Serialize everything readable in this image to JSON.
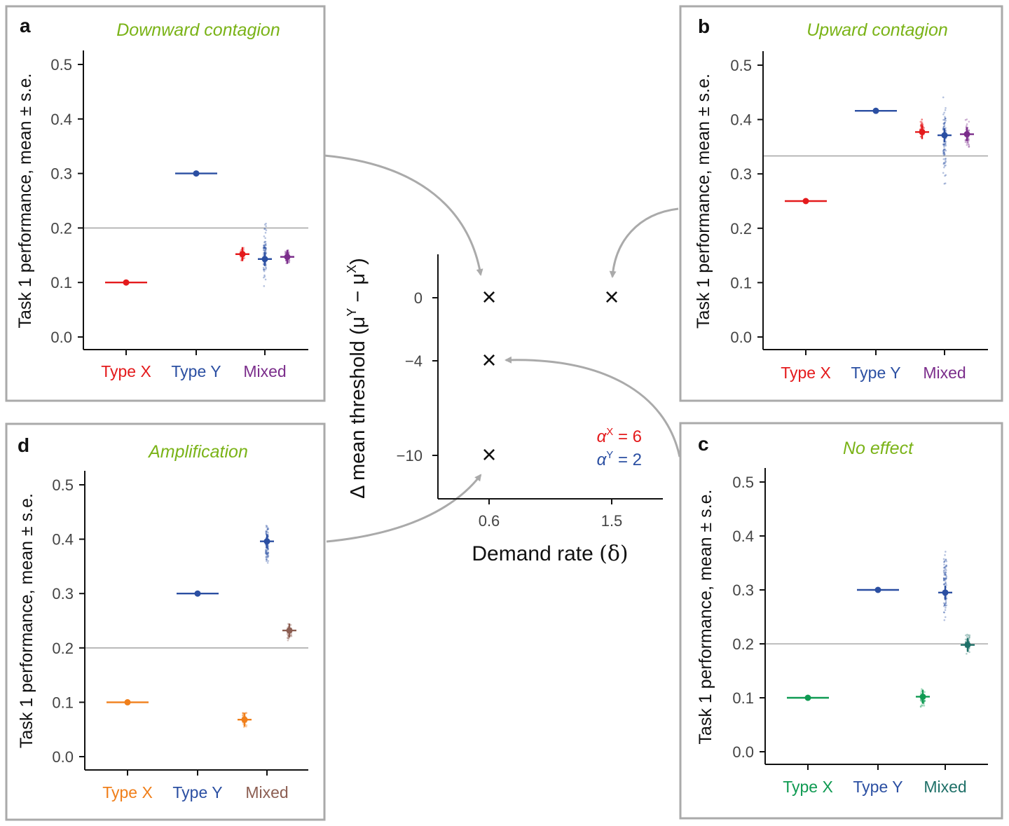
{
  "colors": {
    "red": "#e41a1c",
    "blue": "#2b4fa2",
    "purple": "#7b2d8b",
    "orange": "#f07f1a",
    "brown": "#8c5e52",
    "green": "#0f9a52",
    "teal": "#1f7068",
    "title_green": "#7ab317",
    "axis": "#111111",
    "tick_text": "#444444",
    "ref_line": "#aaaaaa",
    "arrow": "#aaaaaa",
    "panel_border": "#aaaaaa"
  },
  "chart_data": [
    {
      "panel": "a",
      "type": "scatter",
      "title": "Downward contagion",
      "ylabel": "Task 1 performance, mean ± s.e.",
      "ylim": [
        0,
        0.5
      ],
      "yticks": [
        "0.0",
        "0.1",
        "0.2",
        "0.3",
        "0.4",
        "0.5"
      ],
      "categories": [
        "Type X",
        "Type Y",
        "Mixed"
      ],
      "category_colors": [
        "red",
        "blue",
        "purple"
      ],
      "reference_line": 0.2,
      "points": [
        {
          "group": "Type X",
          "value": 0.1,
          "color": "red",
          "style": "bar"
        },
        {
          "group": "Type Y",
          "value": 0.3,
          "color": "blue",
          "style": "bar"
        },
        {
          "group": "Mixed",
          "sub": -1,
          "value": 0.152,
          "color": "red",
          "style": "cloud",
          "spread": [
            0.135,
            0.17
          ]
        },
        {
          "group": "Mixed",
          "sub": 0,
          "value": 0.143,
          "color": "blue",
          "style": "cloud",
          "spread": [
            0.085,
            0.218
          ]
        },
        {
          "group": "Mixed",
          "sub": 1,
          "value": 0.147,
          "color": "purple",
          "style": "cloud",
          "spread": [
            0.13,
            0.168
          ]
        }
      ]
    },
    {
      "panel": "b",
      "type": "scatter",
      "title": "Upward contagion",
      "ylabel": "Task 1 performance, mean ± s.e.",
      "ylim": [
        0,
        0.5
      ],
      "yticks": [
        "0.0",
        "0.1",
        "0.2",
        "0.3",
        "0.4",
        "0.5"
      ],
      "categories": [
        "Type X",
        "Type Y",
        "Mixed"
      ],
      "category_colors": [
        "red",
        "blue",
        "purple"
      ],
      "reference_line": 0.333,
      "points": [
        {
          "group": "Type X",
          "value": 0.25,
          "color": "red",
          "style": "bar"
        },
        {
          "group": "Type Y",
          "value": 0.416,
          "color": "blue",
          "style": "bar"
        },
        {
          "group": "Mixed",
          "sub": -1,
          "value": 0.377,
          "color": "red",
          "style": "cloud",
          "spread": [
            0.355,
            0.413
          ]
        },
        {
          "group": "Mixed",
          "sub": 0,
          "value": 0.371,
          "color": "blue",
          "style": "cloud",
          "spread": [
            0.262,
            0.461
          ]
        },
        {
          "group": "Mixed",
          "sub": 1,
          "value": 0.373,
          "color": "purple",
          "style": "cloud",
          "spread": [
            0.338,
            0.405
          ]
        }
      ]
    },
    {
      "panel": "c",
      "type": "scatter",
      "title": "No effect",
      "ylabel": "Task 1 performance, mean ± s.e.",
      "ylim": [
        0,
        0.5
      ],
      "yticks": [
        "0.0",
        "0.1",
        "0.2",
        "0.3",
        "0.4",
        "0.5"
      ],
      "categories": [
        "Type X",
        "Type Y",
        "Mixed"
      ],
      "category_colors": [
        "green",
        "blue",
        "teal"
      ],
      "reference_line": 0.2,
      "points": [
        {
          "group": "Type X",
          "value": 0.1,
          "color": "green",
          "style": "bar"
        },
        {
          "group": "Type Y",
          "value": 0.3,
          "color": "blue",
          "style": "bar"
        },
        {
          "group": "Mixed",
          "sub": -1,
          "value": 0.102,
          "color": "green",
          "style": "cloud",
          "spread": [
            0.075,
            0.122
          ]
        },
        {
          "group": "Mixed",
          "sub": 0,
          "value": 0.295,
          "color": "blue",
          "style": "cloud",
          "spread": [
            0.232,
            0.386
          ]
        },
        {
          "group": "Mixed",
          "sub": 1,
          "value": 0.198,
          "color": "teal",
          "style": "cloud",
          "spread": [
            0.178,
            0.228
          ]
        }
      ]
    },
    {
      "panel": "d",
      "type": "scatter",
      "title": "Amplification",
      "ylabel": "Task 1 performance, mean ± s.e.",
      "ylim": [
        0,
        0.5
      ],
      "yticks": [
        "0.0",
        "0.1",
        "0.2",
        "0.3",
        "0.4",
        "0.5"
      ],
      "categories": [
        "Type X",
        "Type Y",
        "Mixed"
      ],
      "category_colors": [
        "orange",
        "blue",
        "brown"
      ],
      "reference_line": 0.2,
      "points": [
        {
          "group": "Type X",
          "value": 0.1,
          "color": "orange",
          "style": "bar"
        },
        {
          "group": "Type Y",
          "value": 0.3,
          "color": "blue",
          "style": "bar"
        },
        {
          "group": "Mixed",
          "sub": -1,
          "value": 0.068,
          "color": "orange",
          "style": "cloud",
          "spread": [
            0.05,
            0.09
          ]
        },
        {
          "group": "Mixed",
          "sub": 0,
          "value": 0.396,
          "color": "blue",
          "style": "cloud",
          "spread": [
            0.33,
            0.453
          ]
        },
        {
          "group": "Mixed",
          "sub": 1,
          "value": 0.232,
          "color": "brown",
          "style": "cloud",
          "spread": [
            0.21,
            0.252
          ]
        }
      ]
    },
    {
      "panel": "center",
      "type": "scatter",
      "xlabel_text": "Demand rate ",
      "xlabel_symbol": "(δ)",
      "ylabel_prefix": "Δ mean threshold (μ",
      "ylabel_sup1": "Y",
      "ylabel_mid": " − μ",
      "ylabel_sup2": "X",
      "ylabel_suffix": ")",
      "x_categories": [
        "0.6",
        "1.5"
      ],
      "yticks": [
        0,
        -4,
        -10
      ],
      "ylim": [
        -11.5,
        2.6
      ],
      "marker": "×",
      "points": [
        {
          "x": "0.6",
          "y": 0
        },
        {
          "x": "1.5",
          "y": 0
        },
        {
          "x": "0.6",
          "y": -4
        },
        {
          "x": "0.6",
          "y": -10
        }
      ],
      "annotations": [
        {
          "symbol": "α",
          "sup": "X",
          "text": " = 6",
          "color": "red"
        },
        {
          "symbol": "α",
          "sup": "Y",
          "text": " = 2",
          "color": "blue"
        }
      ]
    }
  ]
}
